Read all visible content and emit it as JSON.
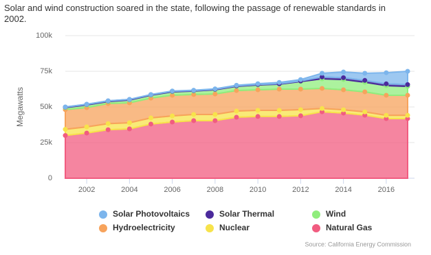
{
  "chart_data": {
    "type": "stacked-area",
    "title": "Solar and wind construction soared in the state, following the passage of renewable standards in 2002.",
    "y_label": "Megawatts",
    "source": "Source: California Energy Commission",
    "x": [
      2001,
      2002,
      2003,
      2004,
      2005,
      2006,
      2007,
      2008,
      2009,
      2010,
      2011,
      2012,
      2013,
      2014,
      2015,
      2016,
      2017
    ],
    "xlim": [
      2001,
      2017
    ],
    "xticks": [
      2002,
      2004,
      2006,
      2008,
      2010,
      2012,
      2014,
      2016
    ],
    "ylim": [
      0,
      100000
    ],
    "yticks": [
      0,
      {
        "value": 25000,
        "label": "25k"
      },
      {
        "value": 50000,
        "label": "50k"
      },
      {
        "value": 75000,
        "label": "75k"
      },
      {
        "value": 100000,
        "label": "100k"
      }
    ],
    "grid": true,
    "series": [
      {
        "name": "Natural Gas",
        "color": "#f15c80",
        "values": [
          30000,
          31700,
          34000,
          34600,
          38000,
          39400,
          40400,
          40400,
          42800,
          43300,
          43300,
          43800,
          46600,
          45700,
          44200,
          41800,
          41800
        ]
      },
      {
        "name": "Nuclear",
        "color": "#f7e34b",
        "values": [
          4300,
          4300,
          4300,
          4300,
          4300,
          4300,
          4300,
          4300,
          4300,
          4300,
          4300,
          4300,
          2300,
          2300,
          2300,
          2300,
          2300
        ]
      },
      {
        "name": "Hydroelectricity",
        "color": "#f7a35c",
        "values": [
          13800,
          13500,
          14100,
          14000,
          13900,
          14500,
          14000,
          14400,
          14400,
          14400,
          14900,
          14400,
          14100,
          14000,
          14100,
          14100,
          14100
        ]
      },
      {
        "name": "Wind",
        "color": "#90ed7d",
        "values": [
          1400,
          1900,
          1400,
          1900,
          2000,
          2400,
          2400,
          2900,
          2900,
          3400,
          3400,
          5300,
          6700,
          7200,
          6700,
          6700,
          6200
        ]
      },
      {
        "name": "Solar Thermal",
        "color": "#4b2a9c",
        "values": [
          400,
          400,
          400,
          400,
          400,
          400,
          400,
          400,
          400,
          400,
          400,
          400,
          1300,
          1300,
          1300,
          1300,
          1300
        ]
      },
      {
        "name": "Solar Photovoltaics",
        "color": "#7cb5ec",
        "values": [
          100,
          100,
          100,
          100,
          100,
          200,
          200,
          300,
          400,
          500,
          900,
          1000,
          2600,
          4000,
          5000,
          7800,
          9300
        ]
      }
    ]
  }
}
